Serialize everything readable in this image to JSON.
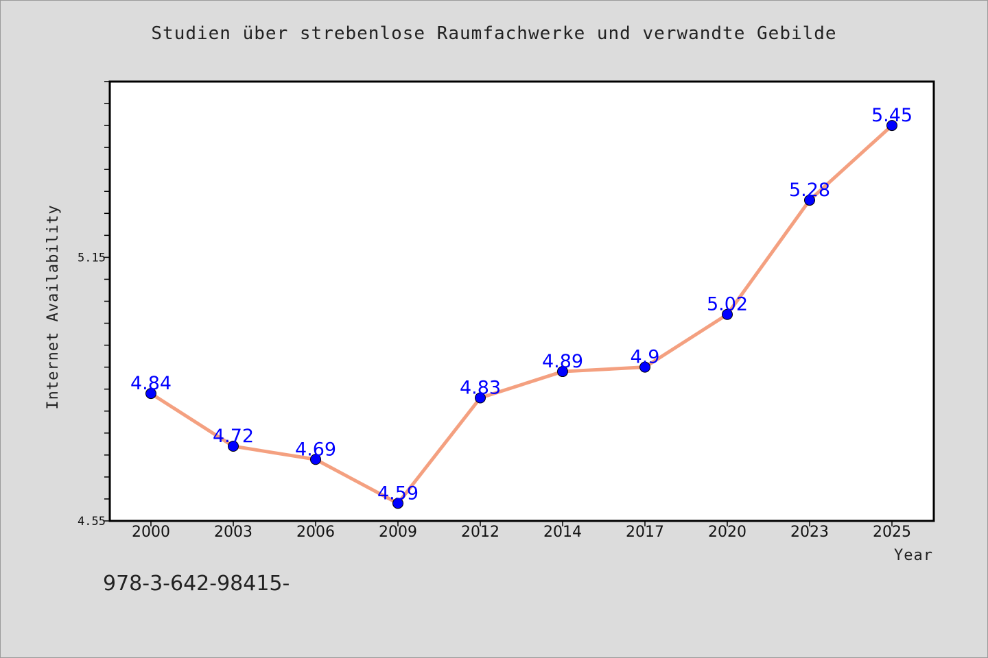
{
  "chart_data": {
    "type": "line",
    "title": "Studien über strebenlose Raumfachwerke und verwandte Gebilde",
    "xlabel": "Year",
    "ylabel": "Internet Availability",
    "categories": [
      "2000",
      "2003",
      "2006",
      "2009",
      "2012",
      "2014",
      "2017",
      "2020",
      "2023",
      "2025"
    ],
    "series": [
      {
        "values": [
          4.84,
          4.72,
          4.69,
          4.59,
          4.83,
          4.89,
          4.9,
          5.02,
          5.28,
          5.45
        ],
        "labels": [
          "4.84",
          "4.72",
          "4.69",
          "4.59",
          "4.83",
          "4.89",
          "4.9",
          "5.02",
          "5.28",
          "5.45"
        ]
      }
    ],
    "ylim": [
      4.55,
      5.55
    ],
    "y_tick_labels": [
      {
        "value": 4.55,
        "label": "4.55"
      },
      {
        "value": 5.15,
        "label": "5.15"
      }
    ],
    "grid": false,
    "line_color": "#f4a080",
    "marker_color": "#0000ff",
    "label_color": "#0000ff",
    "background_color": "#dcdcdc",
    "plot_background": "#ffffff"
  },
  "footer": {
    "code": "978-3-642-98415-"
  }
}
